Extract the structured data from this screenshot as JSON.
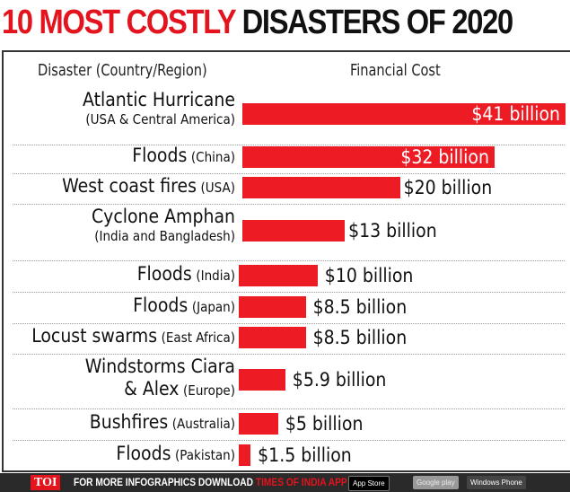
{
  "title": {
    "highlight": "10 MOST COSTLY",
    "rest": "DISASTERS OF 2020",
    "highlight_color": "#e3141d"
  },
  "chart_data": {
    "type": "bar",
    "orientation": "horizontal",
    "column_headers": {
      "category": "Disaster (Country/Region)",
      "value": "Financial Cost"
    },
    "unit": "billion USD",
    "bar_color": "#ed1c24",
    "categories": [
      {
        "name": "Atlantic Hurricane",
        "region": "(USA & Central America)"
      },
      {
        "name": "Floods",
        "region": "(China)"
      },
      {
        "name": "West coast fires",
        "region": "(USA)"
      },
      {
        "name": "Cyclone Amphan",
        "region": "(India and Bangladesh)"
      },
      {
        "name": "Floods",
        "region": "(India)"
      },
      {
        "name": "Floods",
        "region": "(Japan)"
      },
      {
        "name": "Locust swarms",
        "region": "(East Africa)"
      },
      {
        "name": "Windstorms Ciara",
        "name2": "& Alex",
        "region": "(Europe)"
      },
      {
        "name": "Bushfires",
        "region": "(Australia)"
      },
      {
        "name": "Floods",
        "region": "(Pakistan)"
      }
    ],
    "values": [
      41,
      32,
      20,
      13,
      10,
      8.5,
      8.5,
      5.9,
      5,
      1.5
    ],
    "value_labels": [
      "$41 billion",
      "$32 billion",
      "$20 billion",
      "$13 billion",
      "$10 billion",
      "$8.5 billion",
      "$8.5 billion",
      "$5.9 billion",
      "$5 billion",
      "$1.5 billion"
    ]
  },
  "footer": {
    "logo": "TOI",
    "text": "FOR MORE  INFOGRAPHICS DOWNLOAD",
    "app": "TIMES OF INDIA  APP",
    "stores": [
      "App Store",
      "Google play",
      "Windows Phone"
    ]
  }
}
